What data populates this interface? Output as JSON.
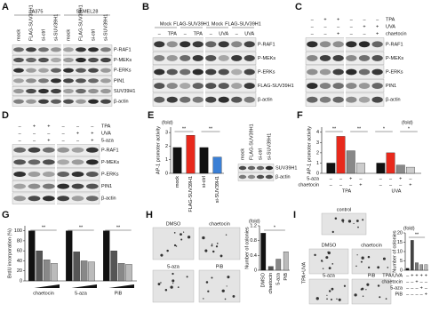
{
  "panels": {
    "A": {
      "label": "A",
      "groups": [
        "A375",
        "SKMEL28"
      ],
      "lanes": [
        "mock",
        "FLAG-SUV39H1",
        "si-ctrl",
        "si-SUV39H1",
        "mock",
        "FLAG-SUV39H1",
        "si-ctrl",
        "si-SUV39H1"
      ],
      "rows": [
        "P-RAF1",
        "P-MEKs",
        "P-ERKs",
        "PIN1",
        "SUV39H1",
        "β-actin"
      ]
    },
    "B": {
      "label": "B",
      "groups": [
        "Mock",
        "FLAG-SUV39H1",
        "Mock",
        "FLAG-SUV39H1"
      ],
      "treatments": [
        {
          "signs": [
            "–",
            "TPA",
            "–",
            "TPA",
            "–",
            "UVA",
            "–",
            "UVA"
          ]
        }
      ],
      "rows": [
        "P-RAF1",
        "P-MEKs",
        "P-ERKs",
        "FLAG-SUV39H1",
        "β-actin"
      ]
    },
    "C": {
      "label": "C",
      "treatments": [
        {
          "name": "TPA",
          "signs": [
            "–",
            "+",
            "+",
            "–",
            "–",
            "–"
          ]
        },
        {
          "name": "UVA",
          "signs": [
            "–",
            "–",
            "–",
            "–",
            "+",
            "+"
          ]
        },
        {
          "name": "chaetocin",
          "signs": [
            "–",
            "–",
            "+",
            "–",
            "–",
            "+"
          ]
        }
      ],
      "rows": [
        "P-RAF1",
        "P-MEKs",
        "P-ERKs",
        "PIN1",
        "β-actin"
      ]
    },
    "D": {
      "label": "D",
      "treatments": [
        {
          "name": "TPA",
          "signs": [
            "–",
            "+",
            "+",
            "–",
            "–",
            "–"
          ]
        },
        {
          "name": "UVA",
          "signs": [
            "–",
            "–",
            "–",
            "–",
            "+",
            "+"
          ]
        },
        {
          "name": "5-aza",
          "signs": [
            "–",
            "–",
            "+",
            "–",
            "–",
            "+"
          ]
        }
      ],
      "rows": [
        "P-RAF1",
        "P-MEKs",
        "P-ERKs",
        "PIN1",
        "β-actin"
      ]
    },
    "E": {
      "label": "E",
      "chart": {
        "type": "bar",
        "ylabel": "AP-1 promoter activity",
        "unit": "(fold)",
        "categories": [
          "mock",
          "FLAG-SUV39H1",
          "si-ctrl",
          "si-SUV39H1"
        ],
        "values": [
          1.9,
          2.8,
          1.9,
          1.2
        ],
        "colors": [
          "#111111",
          "#e8291c",
          "#111111",
          "#3a7fd5"
        ],
        "ylim": [
          0,
          3.4
        ],
        "yticks": [
          0,
          1,
          2,
          3
        ],
        "annotations": [
          "**",
          "**"
        ]
      },
      "blot": {
        "lanes": [
          "mock",
          "FLAG-SUV39H1",
          "si-ctrl",
          "si-SUV39H1"
        ],
        "rows": [
          "SUV39H1",
          "β-actin"
        ]
      }
    },
    "F": {
      "label": "F",
      "chart": {
        "type": "bar",
        "ylabel": "AP-1 promoter activity",
        "unit": "(fold)",
        "groups": [
          "TPA",
          "UVA"
        ],
        "series": [
          {
            "color": "#111111",
            "values": [
              1,
              1
            ]
          },
          {
            "color": "#e8291c",
            "values": [
              3.6,
              2.0
            ]
          },
          {
            "color": "#888888",
            "values": [
              2.2,
              0.8
            ]
          },
          {
            "color": "#cccccc",
            "values": [
              1.0,
              0.6
            ]
          }
        ],
        "ylim": [
          0,
          4.5
        ],
        "yticks": [
          0,
          1,
          2,
          3,
          4
        ],
        "annotations": [
          "**",
          "**",
          "*",
          "*"
        ],
        "treatments": [
          {
            "name": "5-aza",
            "signs": [
              "–",
              "–",
              "+",
              "–",
              "–",
              "–",
              "+",
              "–"
            ]
          },
          {
            "name": "chaetocin",
            "signs": [
              "–",
              "–",
              "–",
              "+",
              "–",
              "–",
              "–",
              "+"
            ]
          }
        ]
      }
    },
    "G": {
      "label": "G",
      "chart": {
        "type": "bar",
        "ylabel": "BrdU incorporation (%)",
        "groups": [
          "chaetocin",
          "5-aza",
          "PiB"
        ],
        "series": [
          {
            "color": "#111111",
            "values": [
              100,
              100,
              100
            ]
          },
          {
            "color": "#555555",
            "values": [
              60,
              58,
              60
            ]
          },
          {
            "color": "#888888",
            "values": [
              42,
              40,
              35
            ]
          },
          {
            "color": "#bbbbbb",
            "values": [
              35,
              38,
              33
            ]
          }
        ],
        "ylim": [
          0,
          110
        ],
        "yticks": [
          0,
          20,
          40,
          60,
          80,
          100
        ],
        "annotations": [
          "**",
          "**",
          "**"
        ]
      }
    },
    "H": {
      "label": "H",
      "plates": [
        "DMSO",
        "chaetocin",
        "5-aza",
        "PiB"
      ],
      "chart": {
        "type": "bar",
        "ylabel": "Number of colonies",
        "unit": "(fold)",
        "categories": [
          "DMSO",
          "chaetocin",
          "5-aza",
          "PiB"
        ],
        "values": [
          1.0,
          0.1,
          0.3,
          0.5
        ],
        "colors": [
          "#111111",
          "#555555",
          "#888888",
          "#bbbbbb"
        ],
        "ylim": [
          0,
          1.2
        ],
        "yticks": [
          0,
          0.4,
          0.8,
          1.2
        ],
        "annotations": [
          "*"
        ]
      }
    },
    "I": {
      "label": "I",
      "plates": [
        "control",
        "DMSO",
        "chaetocin",
        "5-aza",
        "PiB"
      ],
      "side": "TPA+UVA",
      "chart": {
        "type": "bar",
        "ylabel": "Number of colonies",
        "unit": "(fold)",
        "values": [
          1,
          16,
          4,
          3,
          3
        ],
        "colors": [
          "#111111",
          "#444444",
          "#777777",
          "#999999",
          "#bbbbbb"
        ],
        "ylim": [
          0,
          20
        ],
        "yticks": [
          0,
          5,
          10,
          15,
          20
        ],
        "annotations": [
          "**"
        ],
        "treatments": [
          {
            "name": "TPA/UVA",
            "signs": [
              "–",
              "+",
              "+",
              "+",
              "+"
            ]
          },
          {
            "name": "chaetocin",
            "signs": [
              "–",
              "–",
              "+",
              "–",
              "–"
            ]
          },
          {
            "name": "5-aza",
            "signs": [
              "–",
              "–",
              "–",
              "+",
              "–"
            ]
          },
          {
            "name": "PiB",
            "signs": [
              "–",
              "–",
              "–",
              "–",
              "+"
            ]
          }
        ]
      }
    }
  }
}
